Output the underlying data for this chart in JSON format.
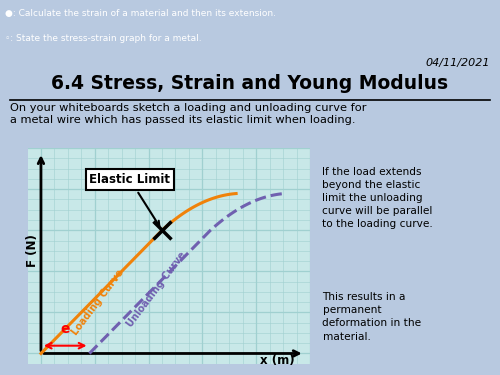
{
  "bg_top_color": "#5b7fa6",
  "bg_main_color": "#b8c9e0",
  "graph_bg_color": "#c8e8e8",
  "grid_color": "#a0d0d0",
  "date": "04/11/2021",
  "title": "6.4 Stress, Strain and Young Modulus",
  "subtitle": "On your whiteboards sketch a loading and unloading curve for\na metal wire which has passed its elastic limit when loading.",
  "bullet1_text": "Calculate the strain of a material and then its extension.",
  "bullet2_text": "State the stress-strain graph for a metal.",
  "xlabel": "x (m)",
  "ylabel": "F (N)",
  "elastic_limit_label": "Elastic Limit",
  "loading_label": "Loading Curve",
  "unloading_label": "Unloading Curve",
  "extension_label": "e",
  "loading_color": "#f0820a",
  "unloading_color": "#7060b0",
  "right_text1": "If the load extends\nbeyond the elastic\nlimit the unloading\ncurve will be parallel\nto the loading curve.",
  "right_text2": "This results in a\npermanent\ndeformation in the\nmaterial.",
  "bullet1_color": "#f5c518",
  "arrow_color": "red"
}
